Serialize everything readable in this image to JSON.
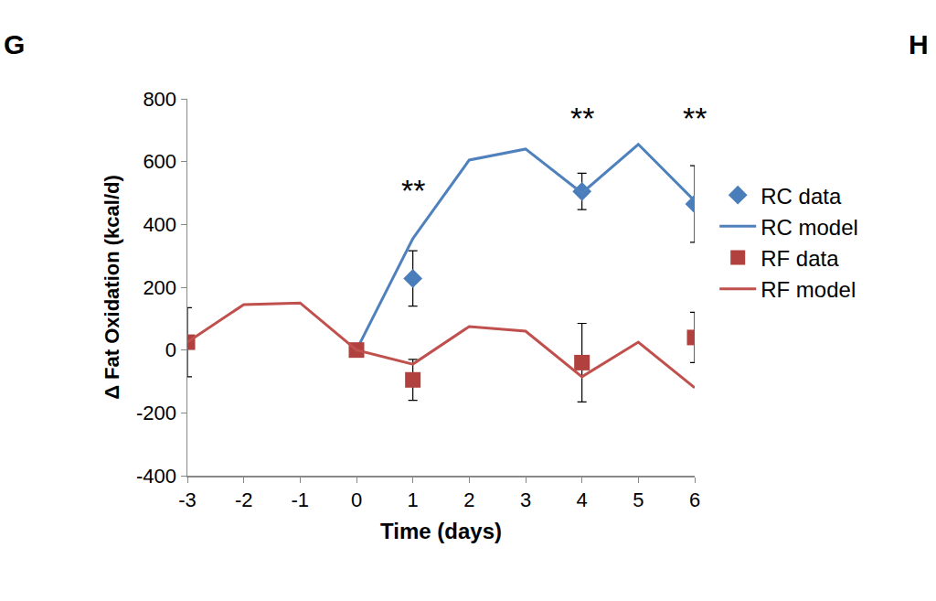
{
  "chart_data": {
    "type": "line",
    "panel_labels": [
      "G",
      "H"
    ],
    "x_label": "Time (days)",
    "y_label": "Δ Fat Oxidation (kcal/d)",
    "xlim": [
      -3,
      6
    ],
    "xticks": [
      -3,
      -2,
      -1,
      0,
      1,
      2,
      3,
      4,
      5,
      6
    ],
    "ylim": [
      -400,
      800
    ],
    "yticks": [
      -400,
      -200,
      0,
      200,
      400,
      600,
      800
    ],
    "grid": false,
    "legend": "right",
    "series": [
      {
        "name": "RC data",
        "type": "scatter",
        "marker": "diamond",
        "color": "#4a7ebb",
        "x": [
          1,
          4,
          6
        ],
        "values": [
          228,
          505,
          465
        ],
        "error": [
          88,
          58,
          122
        ]
      },
      {
        "name": "RC model",
        "type": "line",
        "line_style": "solid",
        "color": "#4f81bd",
        "x": [
          0,
          1,
          2,
          3,
          4,
          5,
          6
        ],
        "values": [
          0,
          355,
          605,
          640,
          500,
          655,
          475
        ]
      },
      {
        "name": "RF data",
        "type": "scatter",
        "marker": "square",
        "color": "#b0413e",
        "x": [
          -3,
          0,
          1,
          4,
          6
        ],
        "values": [
          25,
          0,
          -95,
          -40,
          40
        ],
        "error": [
          110,
          0,
          65,
          125,
          80
        ]
      },
      {
        "name": "RF model",
        "type": "line",
        "line_style": "solid",
        "color": "#c0504d",
        "x": [
          -3,
          -2,
          -1,
          0,
          1,
          2,
          3,
          4,
          5,
          6
        ],
        "values": [
          25,
          145,
          150,
          0,
          -45,
          75,
          60,
          -85,
          25,
          -120
        ]
      }
    ],
    "annotations": [
      {
        "text": "**",
        "x": 1,
        "y": 510
      },
      {
        "text": "**",
        "x": 4,
        "y": 740
      },
      {
        "text": "**",
        "x": 6,
        "y": 740
      }
    ]
  }
}
